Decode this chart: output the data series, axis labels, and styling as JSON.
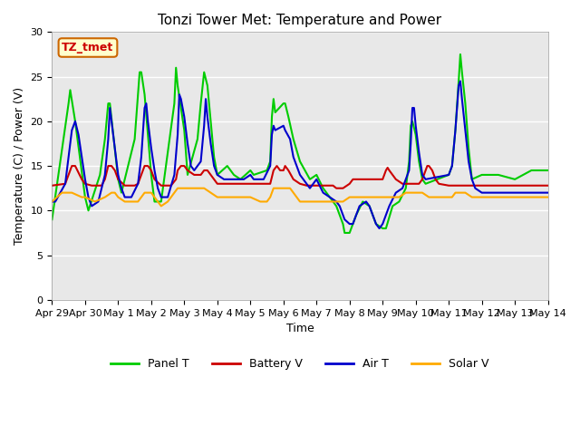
{
  "title": "Tonzi Tower Met: Temperature and Power",
  "xlabel": "Time",
  "ylabel": "Temperature (C) / Power (V)",
  "ylim": [
    0,
    30
  ],
  "yticks": [
    0,
    5,
    10,
    15,
    20,
    25,
    30
  ],
  "x_labels": [
    "Apr 29",
    "Apr 30",
    "May 1",
    "May 2",
    "May 3",
    "May 4",
    "May 5",
    "May 6",
    "May 7",
    "May 8",
    "May 9",
    "May 10",
    "May 11",
    "May 12",
    "May 13",
    "May 14"
  ],
  "x_positions": [
    0,
    1,
    2,
    3,
    4,
    5,
    6,
    7,
    8,
    9,
    10,
    11,
    12,
    13,
    14,
    15
  ],
  "annotation_text": "TZ_tmet",
  "annotation_color": "#cc0000",
  "annotation_bg": "#ffffcc",
  "annotation_edge": "#cc6600",
  "background_color": "#e8e8e8",
  "legend_entries": [
    "Panel T",
    "Battery V",
    "Air T",
    "Solar V"
  ],
  "legend_colors": [
    "#00cc00",
    "#cc0000",
    "#0000cc",
    "#ffaa00"
  ],
  "title_fontsize": 11,
  "axis_label_fontsize": 9,
  "tick_fontsize": 8,
  "legend_fontsize": 9,
  "line_width": 1.5
}
